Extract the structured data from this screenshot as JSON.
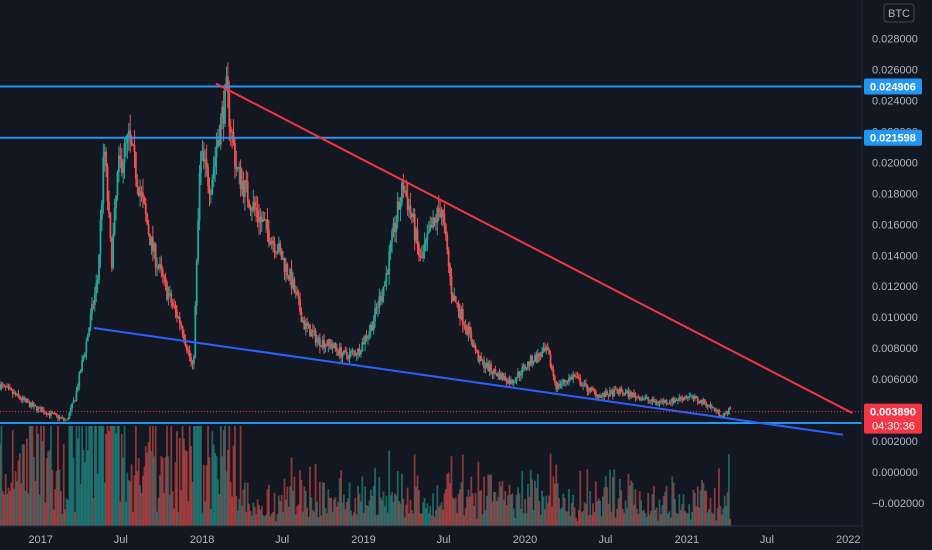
{
  "chart_data": {
    "type": "candlestick",
    "symbol_unit": "BTC",
    "x_axis": {
      "ticks": [
        "2017",
        "Jul",
        "2018",
        "Jul",
        "2019",
        "Jul",
        "2020",
        "Jul",
        "2021",
        "Jul",
        "2022"
      ],
      "range": [
        "2016-10",
        "2022-02"
      ]
    },
    "y_axis": {
      "position": "right",
      "range": [
        -0.0035,
        0.0305
      ],
      "ticks": [
        0.028,
        0.026,
        0.024,
        0.022,
        0.02,
        0.018,
        0.016,
        0.014,
        0.012,
        0.01,
        0.008,
        0.006,
        0.004,
        0.002,
        0.0,
        -0.002
      ],
      "tick_labels": [
        "0.028000",
        "0.026000",
        "0.024000",
        "0.022000",
        "0.020000",
        "0.018000",
        "0.016000",
        "0.014000",
        "0.012000",
        "0.010000",
        "0.008000",
        "0.006000",
        "0.004000",
        "0.002000",
        "0.000000",
        "−0.002000"
      ]
    },
    "price_path": [
      [
        "2016-10-01",
        0.0056
      ],
      [
        "2016-12-15",
        0.0042
      ],
      [
        "2017-03-01",
        0.0033
      ],
      [
        "2017-03-20",
        0.0048
      ],
      [
        "2017-04-15",
        0.0085
      ],
      [
        "2017-05-10",
        0.0125
      ],
      [
        "2017-05-25",
        0.021
      ],
      [
        "2017-06-10",
        0.0135
      ],
      [
        "2017-06-25",
        0.0195
      ],
      [
        "2017-07-20",
        0.0215
      ],
      [
        "2017-08-15",
        0.018
      ],
      [
        "2017-09-10",
        0.0145
      ],
      [
        "2017-10-15",
        0.0115
      ],
      [
        "2017-11-15",
        0.0095
      ],
      [
        "2017-12-12",
        0.0065
      ],
      [
        "2017-12-28",
        0.0205
      ],
      [
        "2018-01-20",
        0.0185
      ],
      [
        "2018-02-05",
        0.0215
      ],
      [
        "2018-02-25",
        0.0245
      ],
      [
        "2018-03-20",
        0.0195
      ],
      [
        "2018-04-20",
        0.0175
      ],
      [
        "2018-05-20",
        0.016
      ],
      [
        "2018-06-20",
        0.0145
      ],
      [
        "2018-07-20",
        0.0125
      ],
      [
        "2018-08-20",
        0.0095
      ],
      [
        "2018-09-20",
        0.0085
      ],
      [
        "2018-10-20",
        0.0082
      ],
      [
        "2018-11-20",
        0.0075
      ],
      [
        "2018-12-20",
        0.0078
      ],
      [
        "2019-01-20",
        0.0095
      ],
      [
        "2019-02-20",
        0.0125
      ],
      [
        "2019-03-10",
        0.0155
      ],
      [
        "2019-04-01",
        0.0185
      ],
      [
        "2019-04-20",
        0.0165
      ],
      [
        "2019-05-10",
        0.0135
      ],
      [
        "2019-06-01",
        0.0155
      ],
      [
        "2019-06-26",
        0.0172
      ],
      [
        "2019-07-20",
        0.0115
      ],
      [
        "2019-08-20",
        0.0095
      ],
      [
        "2019-09-20",
        0.0072
      ],
      [
        "2019-10-20",
        0.0065
      ],
      [
        "2019-12-01",
        0.0058
      ],
      [
        "2020-01-15",
        0.0072
      ],
      [
        "2020-02-20",
        0.0078
      ],
      [
        "2020-03-12",
        0.0055
      ],
      [
        "2020-04-20",
        0.0062
      ],
      [
        "2020-05-20",
        0.0054
      ],
      [
        "2020-06-20",
        0.0049
      ],
      [
        "2020-08-01",
        0.0052
      ],
      [
        "2020-09-20",
        0.0048
      ],
      [
        "2020-10-20",
        0.0045
      ],
      [
        "2020-12-01",
        0.0046
      ],
      [
        "2021-01-01",
        0.0049
      ],
      [
        "2021-02-15",
        0.0044
      ],
      [
        "2021-03-10",
        0.0039
      ],
      [
        "2021-03-25",
        0.0036
      ],
      [
        "2021-04-10",
        0.0041
      ]
    ],
    "horizontal_levels": [
      {
        "value": 0.024906,
        "label": "0.024906",
        "color": "#2196f3"
      },
      {
        "value": 0.021598,
        "label": "0.021598",
        "color": "#2196f3"
      },
      {
        "value": 0.003157,
        "label": "0.003157",
        "color": "#2196f3"
      }
    ],
    "trendlines": [
      {
        "name": "resistance",
        "color": "#f23645",
        "points": [
          [
            "2018-02-01",
            0.0251
          ],
          [
            "2022-01-10",
            0.0038
          ]
        ]
      },
      {
        "name": "support",
        "color": "#2962ff",
        "points": [
          [
            "2017-05-01",
            0.0093
          ],
          [
            "2021-12-20",
            0.0024
          ]
        ]
      }
    ],
    "current_price": {
      "value": 0.00389,
      "label": "0.003890",
      "countdown": "04:30:36",
      "color": "#f23645"
    },
    "volume_pane": true,
    "grid": false,
    "colors": {
      "up": "#26a69a",
      "down": "#ef5350",
      "background": "#131722",
      "axis_text": "#b2b5be"
    }
  }
}
